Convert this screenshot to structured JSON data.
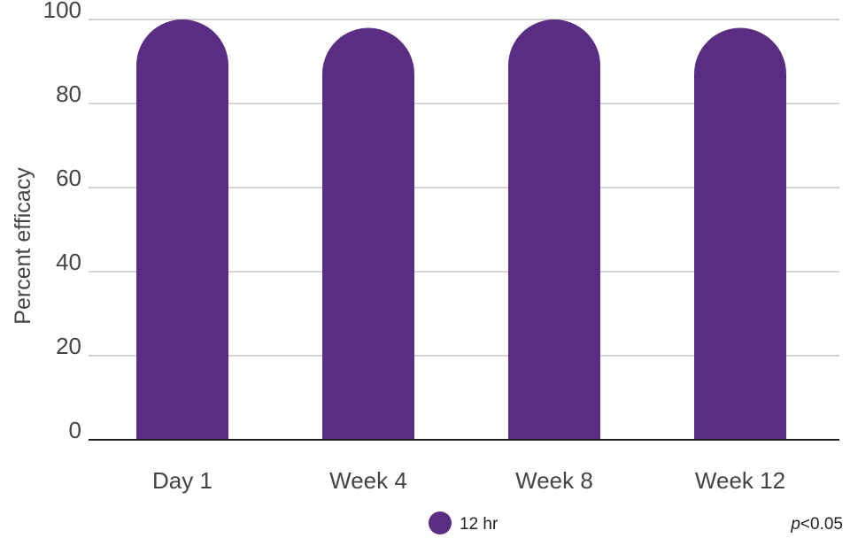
{
  "chart_data": {
    "type": "bar",
    "categories": [
      "Day 1",
      "Week 4",
      "Week 8",
      "Week 12"
    ],
    "series": [
      {
        "name": "12 hr",
        "values": [
          100,
          98,
          100,
          98
        ]
      }
    ],
    "title": "",
    "xlabel": "",
    "ylabel": "Percent efficacy",
    "ylim": [
      0,
      100
    ],
    "yticks": [
      0,
      20,
      40,
      60,
      80,
      100
    ],
    "grid": true,
    "legend": "bottom",
    "annotation_prefix": "p",
    "annotation_suffix": "<0.05",
    "bar_color": "#5a2d82",
    "grid_color": "#aaaaaa",
    "axis_color": "#222222"
  }
}
